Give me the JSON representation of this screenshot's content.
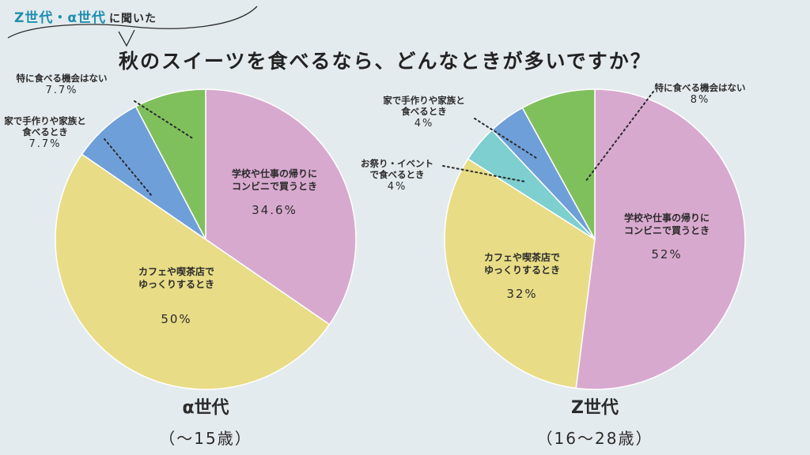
{
  "header": {
    "accent": "Z世代・α世代",
    "rest": "に聞いた",
    "question": "秋のスイーツを食べるなら、どんなときが多いですか？"
  },
  "colors": {
    "convenience": "#d8a9cf",
    "cafe": "#e8dc86",
    "festival": "#7ecfcf",
    "home": "#6f9fd8",
    "none": "#7fc05c"
  },
  "chart_data": [
    {
      "type": "pie",
      "title": "α世代",
      "subtitle": "（〜15歳）",
      "slices": [
        {
          "label": "学校や仕事の帰りにコンビニで買うとき",
          "line1": "学校や仕事の帰りに",
          "line2": "コンビニで買うとき",
          "value": 34.6,
          "display": "34.6%",
          "color_key": "convenience"
        },
        {
          "label": "カフェや喫茶店でゆっくりするとき",
          "line1": "カフェや喫茶店で",
          "line2": "ゆっくりするとき",
          "value": 50,
          "display": "50%",
          "color_key": "cafe"
        },
        {
          "label": "家で手作りや家族と食べるとき",
          "line1": "家で手作りや家族と",
          "line2": "食べるとき",
          "value": 7.7,
          "display": "7.7%",
          "color_key": "home"
        },
        {
          "label": "特に食べる機会はない",
          "line1": "特に食べる機会はない",
          "line2": "",
          "value": 7.7,
          "display": "7.7%",
          "color_key": "none"
        }
      ]
    },
    {
      "type": "pie",
      "title": "Z世代",
      "subtitle": "（16〜28歳）",
      "slices": [
        {
          "label": "学校や仕事の帰りにコンビニで買うとき",
          "line1": "学校や仕事の帰りに",
          "line2": "コンビニで買うとき",
          "value": 52,
          "display": "52%",
          "color_key": "convenience"
        },
        {
          "label": "カフェや喫茶店でゆっくりするとき",
          "line1": "カフェや喫茶店で",
          "line2": "ゆっくりするとき",
          "value": 32,
          "display": "32%",
          "color_key": "cafe"
        },
        {
          "label": "お祭り・イベントで食べるとき",
          "line1": "お祭り・イベント",
          "line2": "で食べるとき",
          "value": 4,
          "display": "4%",
          "color_key": "festival"
        },
        {
          "label": "家で手作りや家族と食べるとき",
          "line1": "家で手作りや家族と",
          "line2": "食べるとき",
          "value": 4,
          "display": "4%",
          "color_key": "home"
        },
        {
          "label": "特に食べる機会はない",
          "line1": "特に食べる機会はない",
          "line2": "",
          "value": 8,
          "display": "8%",
          "color_key": "none"
        }
      ]
    }
  ]
}
